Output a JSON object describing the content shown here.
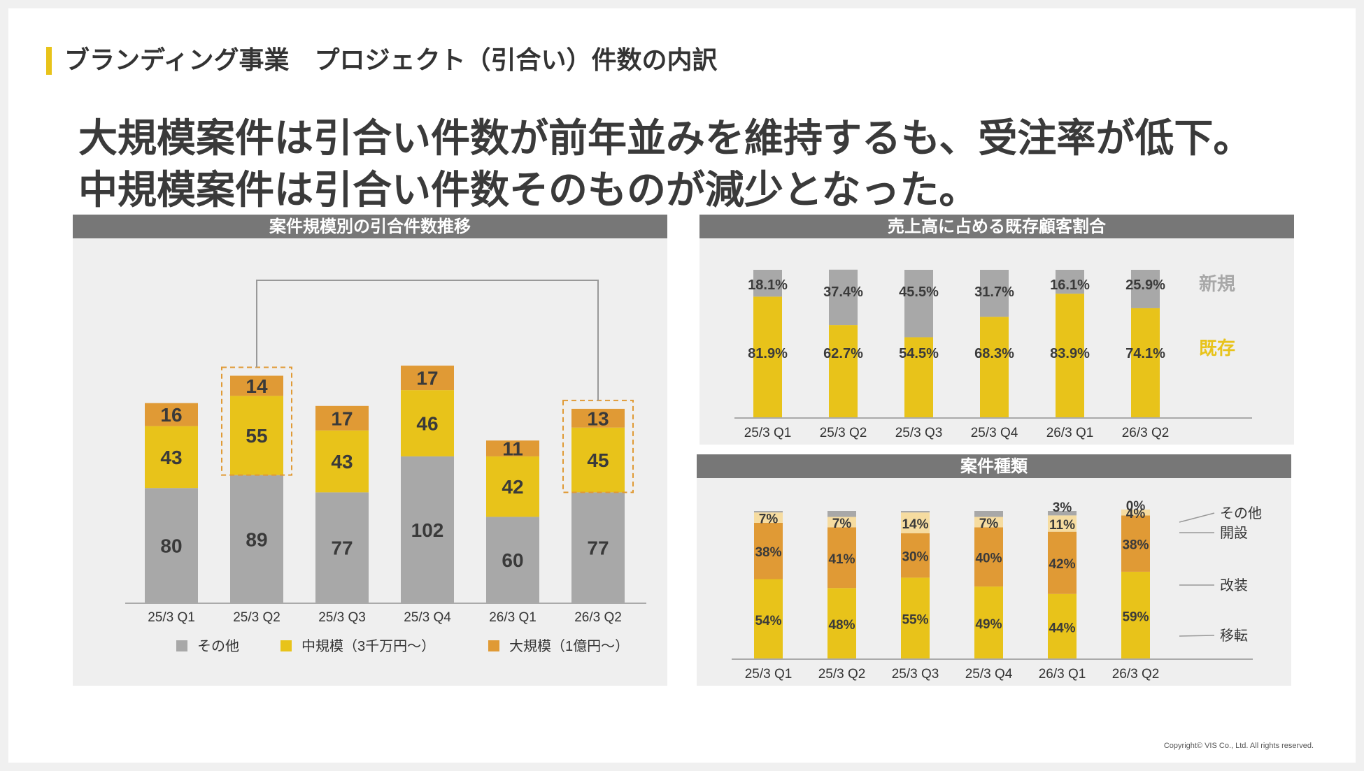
{
  "section_title": "ブランディング事業　プロジェクト（引合い）件数の内訳",
  "headline": {
    "line1": "大規模案件は引合い件数が前年並みを維持するも、受注率が低下。",
    "line2": "中規模案件は引合い件数そのものが減少となった。"
  },
  "colors": {
    "gray": "#a8a8a8",
    "yellow": "#e8c31a",
    "orange": "#e09a35",
    "light_yellow": "#f6dca0",
    "accent": "#e8c31a",
    "header": "#777777"
  },
  "panels": {
    "left_title": "案件規模別の引合件数推移",
    "right_top_title": "売上高に占める既存顧客割合",
    "right_bottom_title": "案件種類"
  },
  "chart_data": [
    {
      "type": "bar",
      "stacked": true,
      "title": "案件規模別の引合件数推移",
      "categories": [
        "25/3 Q1",
        "25/3 Q2",
        "25/3 Q3",
        "25/3 Q4",
        "26/3 Q1",
        "26/3 Q2"
      ],
      "series": [
        {
          "name": "その他",
          "color": "#a8a8a8",
          "values": [
            80,
            89,
            77,
            102,
            60,
            77
          ]
        },
        {
          "name": "中規模（3千万円～）",
          "color": "#e8c31a",
          "values": [
            43,
            55,
            43,
            46,
            42,
            45
          ]
        },
        {
          "name": "大規模（1億円～）",
          "color": "#e09a35",
          "values": [
            16,
            14,
            17,
            17,
            11,
            13
          ]
        }
      ],
      "legend_labels": [
        "その他",
        "中規模（3千万円～）",
        "大規模（1億円～）"
      ],
      "highlighted_categories": [
        "25/3 Q2",
        "26/3 Q2"
      ],
      "ylim": [
        0,
        180
      ]
    },
    {
      "type": "bar",
      "stacked": true,
      "percent": true,
      "title": "売上高に占める既存顧客割合",
      "categories": [
        "25/3 Q1",
        "25/3 Q2",
        "25/3 Q3",
        "25/3 Q4",
        "26/3 Q1",
        "26/3 Q2"
      ],
      "series": [
        {
          "name": "既存",
          "color": "#e8c31a",
          "values": [
            81.9,
            62.7,
            54.5,
            68.3,
            83.9,
            74.1
          ],
          "labels": [
            "81.9%",
            "62.7%",
            "54.5%",
            "68.3%",
            "83.9%",
            "74.1%"
          ]
        },
        {
          "name": "新規",
          "color": "#a8a8a8",
          "values": [
            18.1,
            37.4,
            45.5,
            31.7,
            16.1,
            25.9
          ],
          "labels": [
            "18.1%",
            "37.4%",
            "45.5%",
            "31.7%",
            "16.1%",
            "25.9%"
          ]
        }
      ],
      "legend_labels": {
        "new": "新規",
        "existing": "既存"
      },
      "ylim": [
        0,
        100
      ]
    },
    {
      "type": "bar",
      "stacked": true,
      "percent": true,
      "title": "案件種類",
      "categories": [
        "25/3 Q1",
        "25/3 Q2",
        "25/3 Q3",
        "25/3 Q4",
        "26/3 Q1",
        "26/3 Q2"
      ],
      "series": [
        {
          "name": "移転",
          "color": "#e8c31a",
          "values": [
            54,
            48,
            55,
            49,
            44,
            59
          ],
          "labels": [
            "54%",
            "48%",
            "55%",
            "49%",
            "44%",
            "59%"
          ]
        },
        {
          "name": "改装",
          "color": "#e09a35",
          "values": [
            38,
            41,
            30,
            40,
            42,
            38
          ],
          "labels": [
            "38%",
            "41%",
            "30%",
            "40%",
            "42%",
            "38%"
          ]
        },
        {
          "name": "開設",
          "color": "#f6dca0",
          "values": [
            7,
            7,
            14,
            7,
            11,
            4
          ],
          "labels": [
            "7%",
            "7%",
            "14%",
            "7%",
            "11%",
            "4%"
          ]
        },
        {
          "name": "その他",
          "color": "#a8a8a8",
          "values": [
            1,
            4,
            1,
            4,
            3,
            0
          ],
          "labels": [
            "",
            "",
            "",
            "",
            "3%",
            "0%"
          ]
        }
      ],
      "legend_labels": [
        "その他",
        "開設",
        "改装",
        "移転"
      ],
      "ylim": [
        0,
        100
      ]
    }
  ],
  "copyright": "Copyright© VIS Co., Ltd. All rights reserved."
}
